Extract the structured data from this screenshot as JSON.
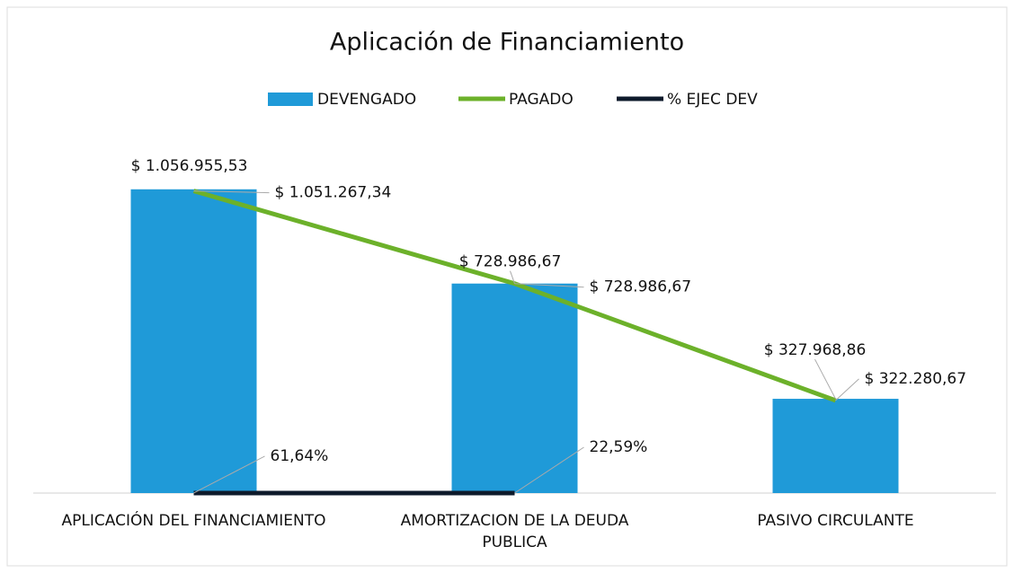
{
  "chart_data": {
    "type": "bar",
    "title": "Aplicación de Financiamiento",
    "categories": [
      "APLICACIÓN DEL FINANCIAMIENTO",
      "AMORTIZACION DE LA DEUDA PUBLICA",
      "PASIVO CIRCULANTE"
    ],
    "ylim": [
      0,
      1100000
    ],
    "series": [
      {
        "name": "DEVENGADO",
        "type": "bar",
        "color": "#1f9ad8",
        "values": [
          1056955.53,
          728986.67,
          327968.86
        ],
        "value_labels": [
          "$ 1.056.955,53",
          "$ 728.986,67",
          "$ 327.968,86"
        ]
      },
      {
        "name": "PAGADO",
        "type": "line",
        "color": "#6cb12a",
        "values": [
          1051267.34,
          728986.67,
          322280.67
        ],
        "value_labels": [
          "$ 1.051.267,34",
          "$ 728.986,67",
          "$ 322.280,67"
        ]
      },
      {
        "name": "% EJEC DEV",
        "type": "line",
        "color": "#0e1a2b",
        "values": [
          61.64,
          22.59,
          null
        ],
        "value_labels": [
          "61,64%",
          "22,59%",
          null
        ]
      }
    ],
    "legend": "top"
  }
}
